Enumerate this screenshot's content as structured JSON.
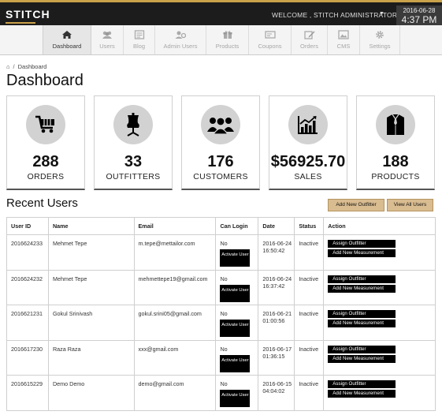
{
  "header": {
    "logo": "STITCH",
    "welcome": "WELCOME , STITCH ADMINISTRATOR",
    "date": "2016-06-28",
    "time": "4:37 PM"
  },
  "nav": [
    {
      "label": "Dashboard",
      "icon": "home-icon"
    },
    {
      "label": "Users",
      "icon": "users-icon"
    },
    {
      "label": "Blog",
      "icon": "blog-icon"
    },
    {
      "label": "Admin Users",
      "icon": "admin-users-icon"
    },
    {
      "label": "Products",
      "icon": "gift-icon"
    },
    {
      "label": "Coupons",
      "icon": "coupon-icon"
    },
    {
      "label": "Orders",
      "icon": "edit-icon"
    },
    {
      "label": "CMS",
      "icon": "picture-icon"
    },
    {
      "label": "Settings",
      "icon": "gear-icon"
    }
  ],
  "breadcrumb": {
    "current": "Dashboard",
    "separator": "/"
  },
  "page_title": "Dashboard",
  "stats": [
    {
      "value": "288",
      "label": "ORDERS",
      "icon": "cart-icon"
    },
    {
      "value": "33",
      "label": "OUTFITTERS",
      "icon": "dress-form-icon"
    },
    {
      "value": "176",
      "label": "CUSTOMERS",
      "icon": "group-icon"
    },
    {
      "value": "$56925.70",
      "label": "SALES",
      "icon": "chart-icon"
    },
    {
      "value": "188",
      "label": "PRODUCTS",
      "icon": "shirt-icon"
    }
  ],
  "recent_users": {
    "title": "Recent Users",
    "add_outfitter": "Add New Outfitter",
    "view_all": "View All Users",
    "columns": [
      "User ID",
      "Name",
      "Email",
      "Can Login",
      "Date",
      "Status",
      "Action"
    ],
    "activate_label": "Activate User",
    "assign_label": "Assign Outfitter",
    "measurement_label": "Add New Measurement",
    "rows": [
      {
        "id": "2016624233",
        "name": "Mehmet Tepe",
        "email": "m.tepe@mettailor.com",
        "can_login": "No",
        "date": "2016-06-24",
        "time": "16:50:42",
        "status": "Inactive"
      },
      {
        "id": "2016624232",
        "name": "Mehmet Tepe",
        "email": "mehmettepe19@gmail.com",
        "can_login": "No",
        "date": "2016-06-24",
        "time": "16:37:42",
        "status": "Inactive"
      },
      {
        "id": "2016621231",
        "name": "Gokul Srinivash",
        "email": "gokul.srini05@gmail.com",
        "can_login": "No",
        "date": "2016-06-21",
        "time": "01:00:56",
        "status": "Inactive"
      },
      {
        "id": "2016617230",
        "name": "Raza Raza",
        "email": "xxx@gmail.com",
        "can_login": "No",
        "date": "2016-06-17",
        "time": "01:36:15",
        "status": "Inactive"
      },
      {
        "id": "2016615229",
        "name": "Demo Demo",
        "email": "demo@gmail.com",
        "can_login": "No",
        "date": "2016-06-15",
        "time": "04:04:02",
        "status": "Inactive"
      }
    ]
  }
}
